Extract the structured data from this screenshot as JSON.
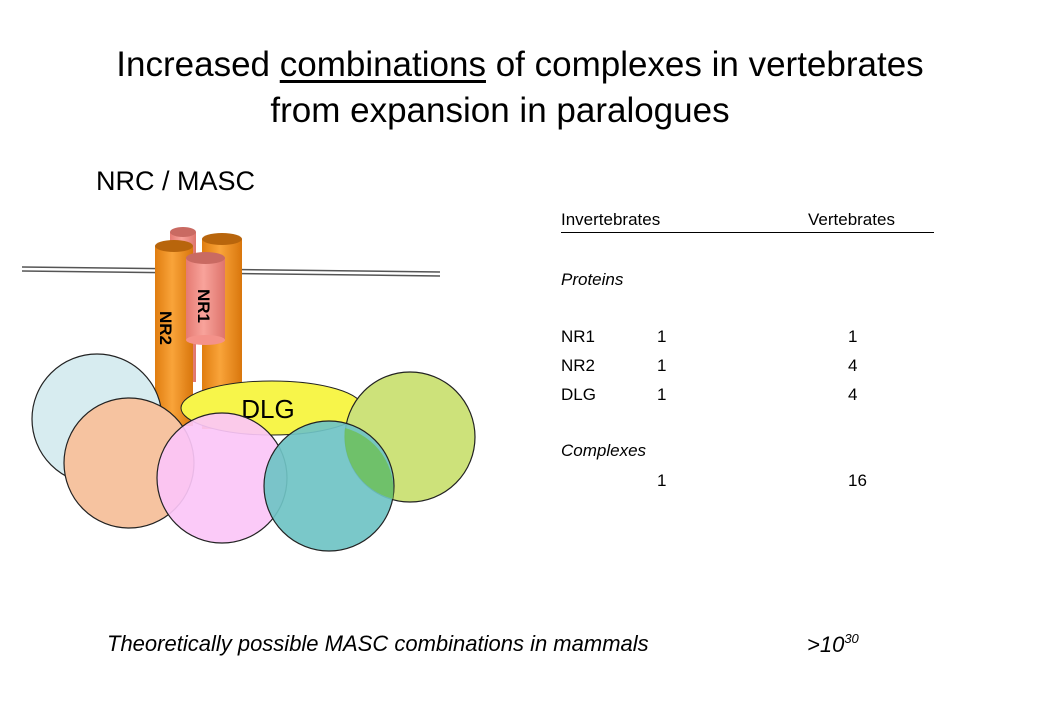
{
  "title": {
    "part1": "Increased ",
    "underlined": "combinations",
    "part2": " of complexes in vertebrates",
    "line2": "from expansion in paralogues"
  },
  "subtitle": "NRC / MASC",
  "diagram": {
    "nr1_label": "NR1",
    "nr2_label": "NR2",
    "dlg_label": "DLG",
    "colors": {
      "cylinder_orange": "#f5951f",
      "cylinder_pink": "#f4928a",
      "dlg": "#f7f54a",
      "circle_lightblue": "#d7ecf0",
      "circle_peach": "#f6c3a0",
      "circle_pink": "#fbc6f7",
      "circle_teal": "#75c6c6",
      "circle_green": "#cde27a"
    }
  },
  "table": {
    "header_left": "Invertebrates",
    "header_right": "Vertebrates",
    "proteins_label": "Proteins",
    "rows": [
      {
        "name": "NR1",
        "invert": "1",
        "vert": "1"
      },
      {
        "name": "NR2",
        "invert": "1",
        "vert": "4"
      },
      {
        "name": "DLG",
        "invert": "1",
        "vert": "4"
      }
    ],
    "complexes_label": "Complexes",
    "complexes_invert": "1",
    "complexes_vert": "16"
  },
  "footnote": {
    "text": "Theoretically possible MASC combinations  in mammals",
    "value_base": ">10",
    "value_exp": "30"
  }
}
